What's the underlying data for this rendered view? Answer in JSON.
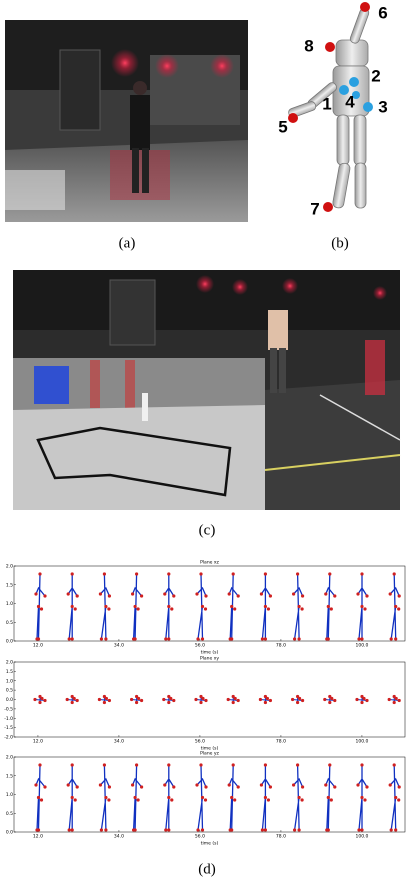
{
  "panels": {
    "a": {
      "caption": "(a)"
    },
    "b": {
      "caption": "(b)",
      "joint_labels": [
        "6",
        "8",
        "2",
        "1",
        "4",
        "3",
        "5",
        "7"
      ]
    },
    "c": {
      "caption": "(c)"
    },
    "d": {
      "caption": "(d)",
      "plots": [
        {
          "title": "Plane xz",
          "xlabel": "time (s)",
          "xlim": [
            5.5,
            111.7
          ],
          "ylim": [
            0,
            2
          ],
          "xticks": [
            {
              "value": 12,
              "label": "12.0"
            },
            {
              "value": 34,
              "label": "34.0"
            },
            {
              "value": 56,
              "label": "56.0"
            },
            {
              "value": 78,
              "label": "78.0"
            },
            {
              "value": 100,
              "label": "100.0"
            }
          ],
          "yticks": [
            {
              "value": 0,
              "label": "0.0"
            },
            {
              "value": 0.5,
              "label": "0.5"
            },
            {
              "value": 1,
              "label": "1.0"
            },
            {
              "value": 1.5,
              "label": "1.5"
            },
            {
              "value": 2,
              "label": "2.0"
            }
          ]
        },
        {
          "title": "Plane xy",
          "xlabel": "time (s)",
          "xlim": [
            5.5,
            111.7
          ],
          "ylim": [
            -2,
            2
          ],
          "xticks": [
            {
              "value": 12,
              "label": "12.0"
            },
            {
              "value": 34,
              "label": "34.0"
            },
            {
              "value": 56,
              "label": "56.0"
            },
            {
              "value": 78,
              "label": "78.0"
            },
            {
              "value": 100,
              "label": "100.0"
            }
          ],
          "yticks": [
            {
              "value": -2,
              "label": "-2.0"
            },
            {
              "value": -1.5,
              "label": "-1.5"
            },
            {
              "value": -1,
              "label": "-1.0"
            },
            {
              "value": -0.5,
              "label": "-0.5"
            },
            {
              "value": 0,
              "label": "0.0"
            },
            {
              "value": 0.5,
              "label": "0.5"
            },
            {
              "value": 1,
              "label": "1.0"
            },
            {
              "value": 1.5,
              "label": "1.5"
            },
            {
              "value": 2,
              "label": "2.0"
            }
          ]
        },
        {
          "title": "Plane yz",
          "xlabel": "time (s)",
          "xlim": [
            5.5,
            111.7
          ],
          "ylim": [
            0,
            2
          ],
          "xticks": [
            {
              "value": 12,
              "label": "12.0"
            },
            {
              "value": 34,
              "label": "34.0"
            },
            {
              "value": 56,
              "label": "56.0"
            },
            {
              "value": 78,
              "label": "78.0"
            },
            {
              "value": 100,
              "label": "100.0"
            }
          ],
          "yticks": [
            {
              "value": 0,
              "label": "0.0"
            },
            {
              "value": 0.5,
              "label": "0.5"
            },
            {
              "value": 1,
              "label": "1.0"
            },
            {
              "value": 1.5,
              "label": "1.5"
            },
            {
              "value": 2,
              "label": "2.0"
            }
          ]
        }
      ]
    }
  }
}
